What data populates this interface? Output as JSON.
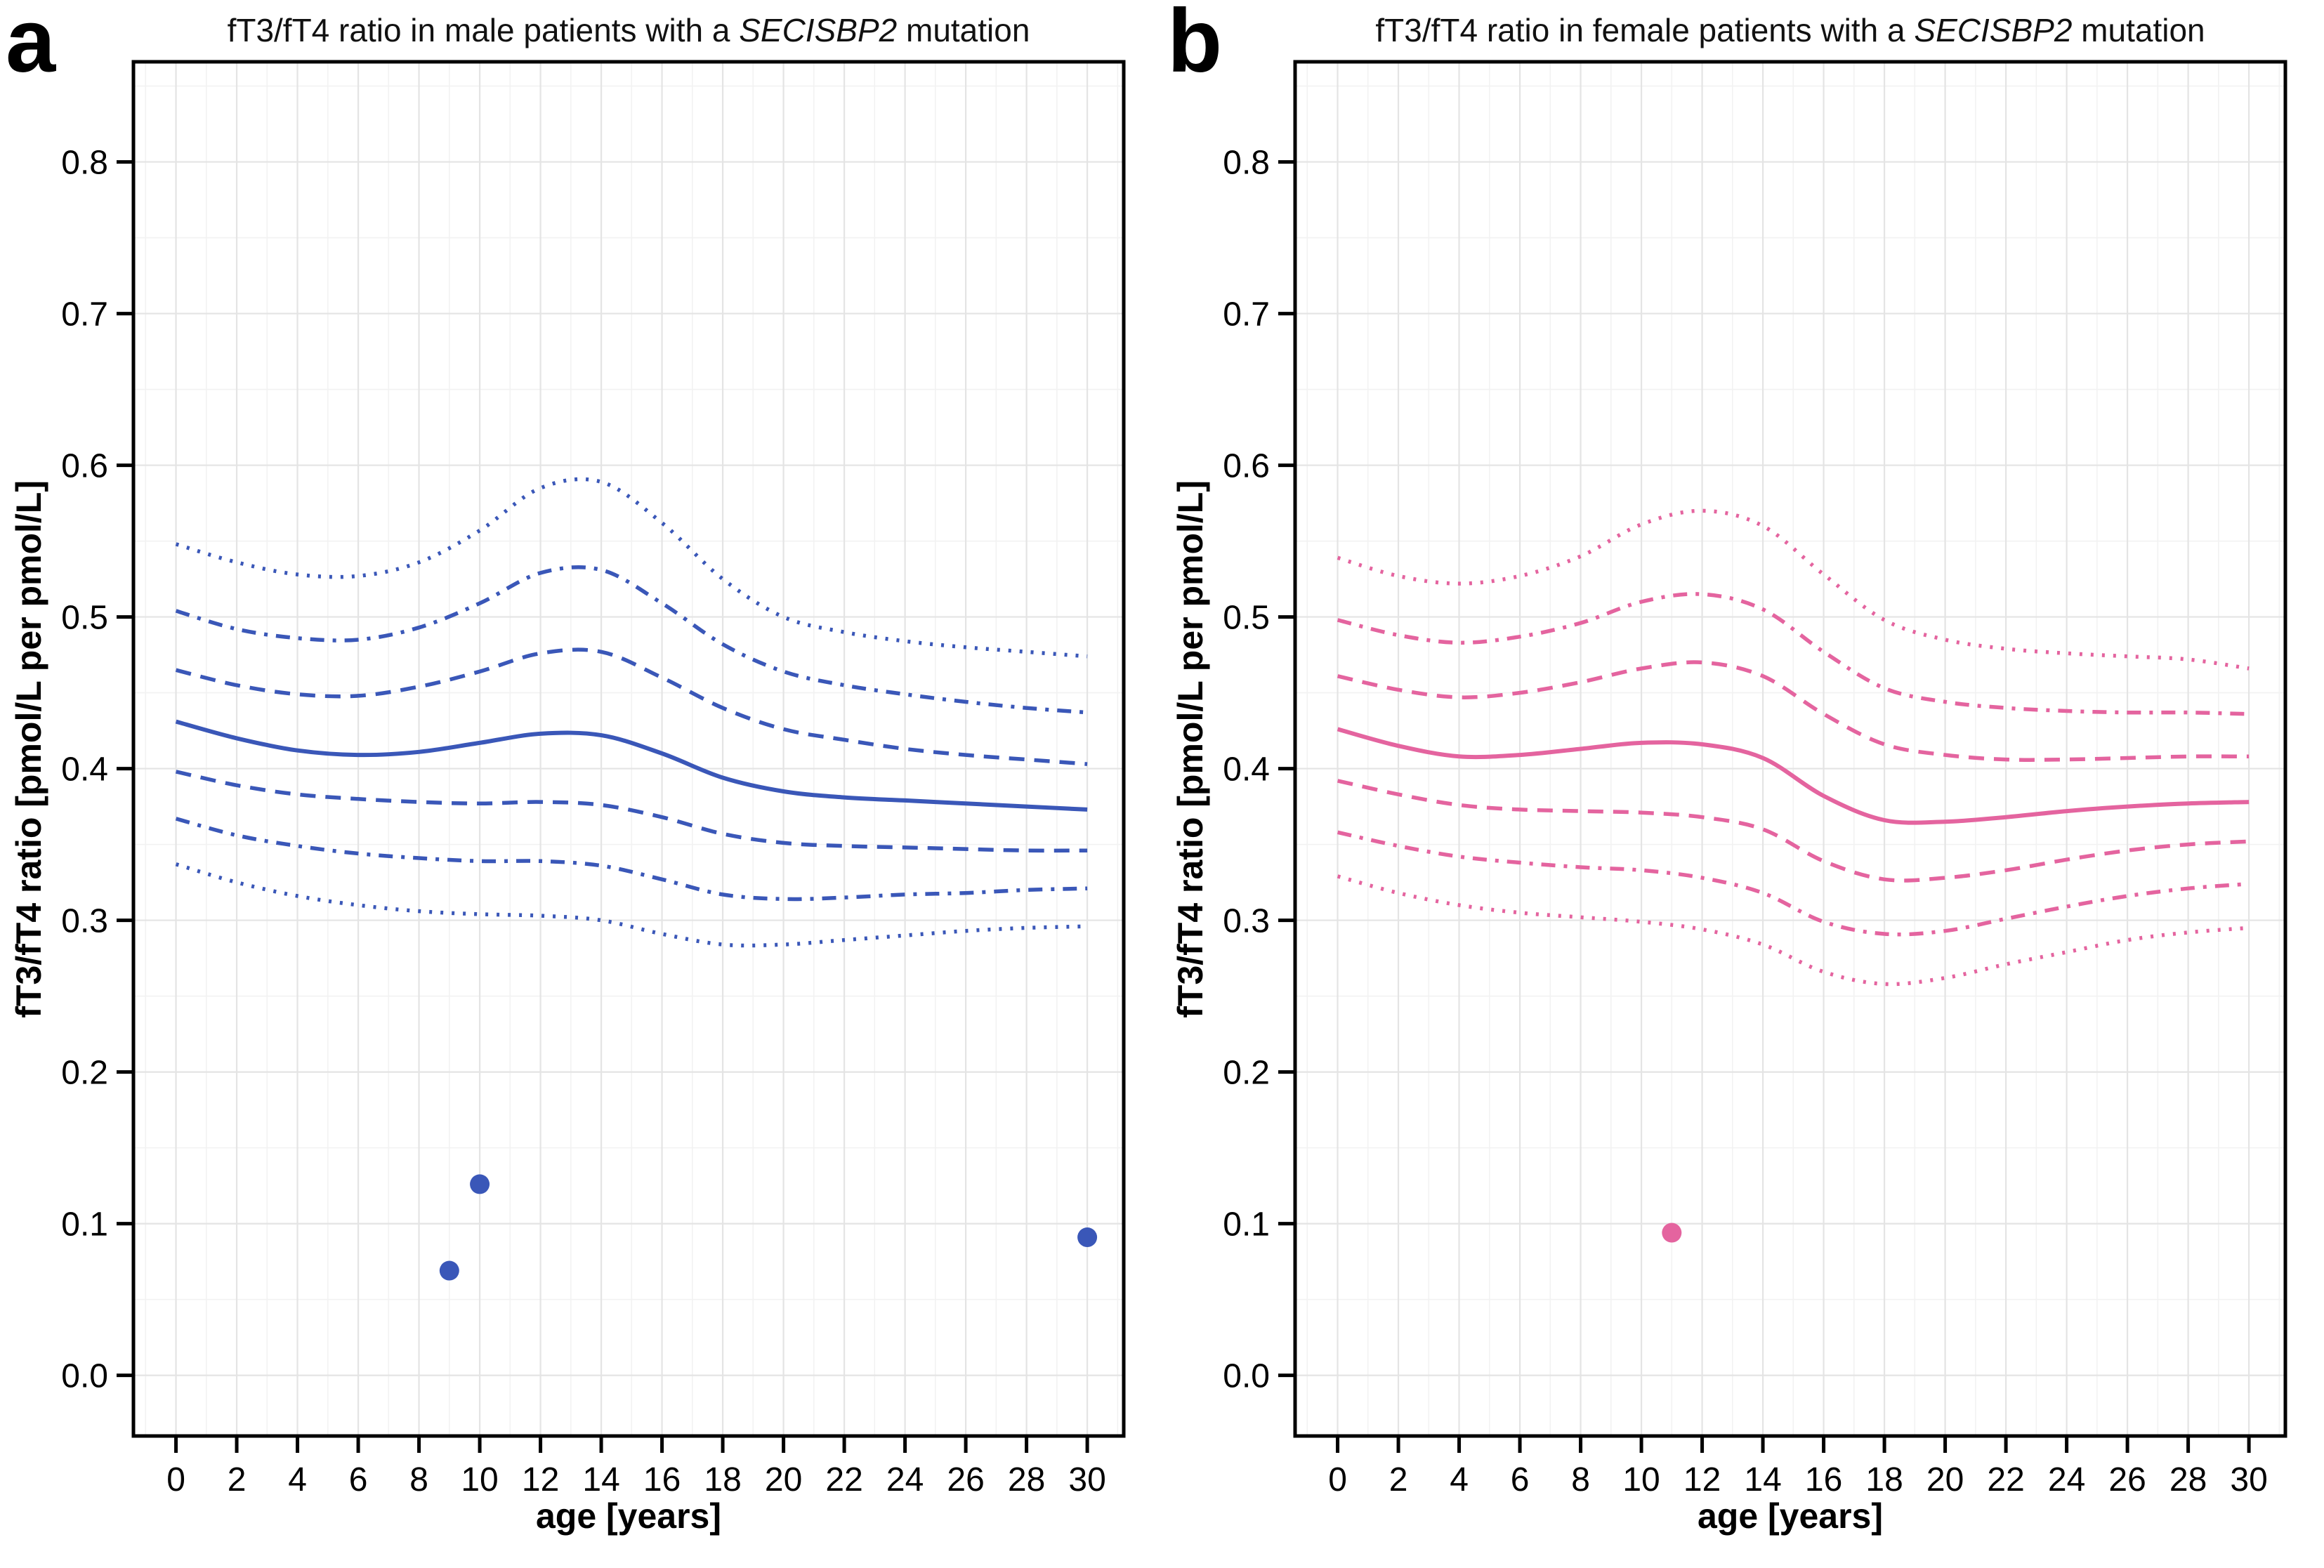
{
  "figure": {
    "background": "#ffffff",
    "panel_border_color": "#000000",
    "grid_major_color": "#e4e4e4",
    "grid_minor_color": "#f2f2f2",
    "tick_color": "#000000",
    "male_color": "#3a57b8",
    "female_color": "#e4649f"
  },
  "axes": {
    "xlabel": "age [years]",
    "ylabel": "fT3/fT4 ratio [pmol/L per pmol/L]",
    "x_tick_values": [
      0,
      2,
      4,
      6,
      8,
      10,
      12,
      14,
      16,
      18,
      20,
      22,
      24,
      26,
      28,
      30
    ],
    "x_tick_labels": [
      "0",
      "2",
      "4",
      "6",
      "8",
      "10",
      "12",
      "14",
      "16",
      "18",
      "20",
      "22",
      "24",
      "26",
      "28",
      "30"
    ],
    "y_tick_values": [
      0.0,
      0.1,
      0.2,
      0.3,
      0.4,
      0.5,
      0.6,
      0.7,
      0.8
    ],
    "y_tick_labels": [
      "0.0",
      "0.1",
      "0.2",
      "0.3",
      "0.4",
      "0.5",
      "0.6",
      "0.7",
      "0.8"
    ]
  },
  "panels": [
    {
      "letter": "a",
      "title_prefix": "fT3/fT4 ratio in male patients with a ",
      "title_gene": "SECISBP2",
      "title_suffix": " mutation",
      "color": "#3a57b8"
    },
    {
      "letter": "b",
      "title_prefix": "fT3/fT4 ratio in female patients with a ",
      "title_gene": "SECISBP2",
      "title_suffix": " mutation",
      "color": "#e4649f"
    }
  ],
  "chart_data": [
    {
      "type": "line",
      "title": "fT3/fT4 ratio in male patients with a SECISBP2 mutation",
      "xlabel": "age [years]",
      "ylabel": "fT3/fT4 ratio [pmol/L per pmol/L]",
      "xlim": [
        -1.4,
        31.2
      ],
      "ylim": [
        -0.04,
        0.866
      ],
      "grid": "major and minor, light gray",
      "legend": "none",
      "color": "#3a57b8",
      "x": [
        0,
        2,
        4,
        6,
        8,
        10,
        12,
        14,
        16,
        18,
        20,
        22,
        24,
        26,
        28,
        30
      ],
      "series": [
        {
          "name": "upper-outer-dotted",
          "style": "dotted",
          "values": [
            0.548,
            0.536,
            0.528,
            0.527,
            0.536,
            0.557,
            0.585,
            0.589,
            0.562,
            0.525,
            0.5,
            0.49,
            0.484,
            0.48,
            0.477,
            0.474
          ]
        },
        {
          "name": "upper-dashdot",
          "style": "dashdot",
          "values": [
            0.504,
            0.492,
            0.486,
            0.485,
            0.493,
            0.509,
            0.529,
            0.531,
            0.509,
            0.482,
            0.464,
            0.455,
            0.449,
            0.444,
            0.44,
            0.437
          ]
        },
        {
          "name": "upper-dashed",
          "style": "dashed",
          "values": [
            0.465,
            0.455,
            0.449,
            0.448,
            0.454,
            0.464,
            0.476,
            0.477,
            0.46,
            0.44,
            0.426,
            0.419,
            0.413,
            0.409,
            0.406,
            0.403
          ]
        },
        {
          "name": "median-solid",
          "style": "solid",
          "values": [
            0.431,
            0.42,
            0.412,
            0.409,
            0.411,
            0.417,
            0.423,
            0.422,
            0.41,
            0.394,
            0.385,
            0.381,
            0.379,
            0.377,
            0.375,
            0.373
          ]
        },
        {
          "name": "lower-dashed",
          "style": "dashed",
          "values": [
            0.398,
            0.389,
            0.383,
            0.38,
            0.378,
            0.377,
            0.378,
            0.376,
            0.368,
            0.357,
            0.351,
            0.349,
            0.348,
            0.347,
            0.346,
            0.346
          ]
        },
        {
          "name": "lower-dashdot",
          "style": "dashdot",
          "values": [
            0.367,
            0.356,
            0.349,
            0.344,
            0.341,
            0.339,
            0.339,
            0.336,
            0.327,
            0.317,
            0.314,
            0.315,
            0.317,
            0.318,
            0.32,
            0.321
          ]
        },
        {
          "name": "lower-outer-dotted",
          "style": "dotted",
          "values": [
            0.337,
            0.325,
            0.316,
            0.31,
            0.306,
            0.304,
            0.303,
            0.3,
            0.291,
            0.284,
            0.284,
            0.287,
            0.29,
            0.293,
            0.295,
            0.296
          ]
        }
      ],
      "points": [
        {
          "x": 9,
          "y": 0.069
        },
        {
          "x": 10,
          "y": 0.126
        },
        {
          "x": 30,
          "y": 0.091
        }
      ]
    },
    {
      "type": "line",
      "title": "fT3/fT4 ratio in female patients with a SECISBP2 mutation",
      "xlabel": "age [years]",
      "ylabel": "fT3/fT4 ratio [pmol/L per pmol/L]",
      "xlim": [
        -1.4,
        31.2
      ],
      "ylim": [
        -0.04,
        0.866
      ],
      "grid": "major and minor, light gray",
      "legend": "none",
      "color": "#e4649f",
      "x": [
        0,
        2,
        4,
        6,
        8,
        10,
        12,
        14,
        16,
        18,
        20,
        22,
        24,
        26,
        28,
        30
      ],
      "series": [
        {
          "name": "upper-outer-dotted",
          "style": "dotted",
          "values": [
            0.539,
            0.527,
            0.522,
            0.527,
            0.54,
            0.561,
            0.57,
            0.56,
            0.528,
            0.498,
            0.485,
            0.479,
            0.476,
            0.474,
            0.472,
            0.466
          ]
        },
        {
          "name": "upper-dashdot",
          "style": "dashdot",
          "values": [
            0.498,
            0.488,
            0.483,
            0.487,
            0.496,
            0.51,
            0.515,
            0.505,
            0.477,
            0.453,
            0.444,
            0.44,
            0.438,
            0.437,
            0.437,
            0.436
          ]
        },
        {
          "name": "upper-dashed",
          "style": "dashed",
          "values": [
            0.461,
            0.452,
            0.447,
            0.45,
            0.457,
            0.466,
            0.47,
            0.461,
            0.436,
            0.416,
            0.409,
            0.406,
            0.406,
            0.407,
            0.408,
            0.408
          ]
        },
        {
          "name": "median-solid",
          "style": "solid",
          "values": [
            0.426,
            0.415,
            0.408,
            0.409,
            0.413,
            0.417,
            0.416,
            0.407,
            0.382,
            0.366,
            0.365,
            0.368,
            0.372,
            0.375,
            0.377,
            0.378
          ]
        },
        {
          "name": "lower-dashed",
          "style": "dashed",
          "values": [
            0.392,
            0.383,
            0.376,
            0.373,
            0.372,
            0.371,
            0.368,
            0.36,
            0.339,
            0.327,
            0.328,
            0.333,
            0.34,
            0.346,
            0.35,
            0.352
          ]
        },
        {
          "name": "lower-dashdot",
          "style": "dashdot",
          "values": [
            0.358,
            0.349,
            0.342,
            0.338,
            0.335,
            0.333,
            0.328,
            0.318,
            0.299,
            0.291,
            0.293,
            0.301,
            0.309,
            0.316,
            0.321,
            0.324
          ]
        },
        {
          "name": "lower-outer-dotted",
          "style": "dotted",
          "values": [
            0.329,
            0.318,
            0.31,
            0.305,
            0.302,
            0.299,
            0.294,
            0.284,
            0.266,
            0.258,
            0.262,
            0.271,
            0.279,
            0.287,
            0.292,
            0.295
          ]
        }
      ],
      "points": [
        {
          "x": 11,
          "y": 0.094
        }
      ]
    }
  ]
}
